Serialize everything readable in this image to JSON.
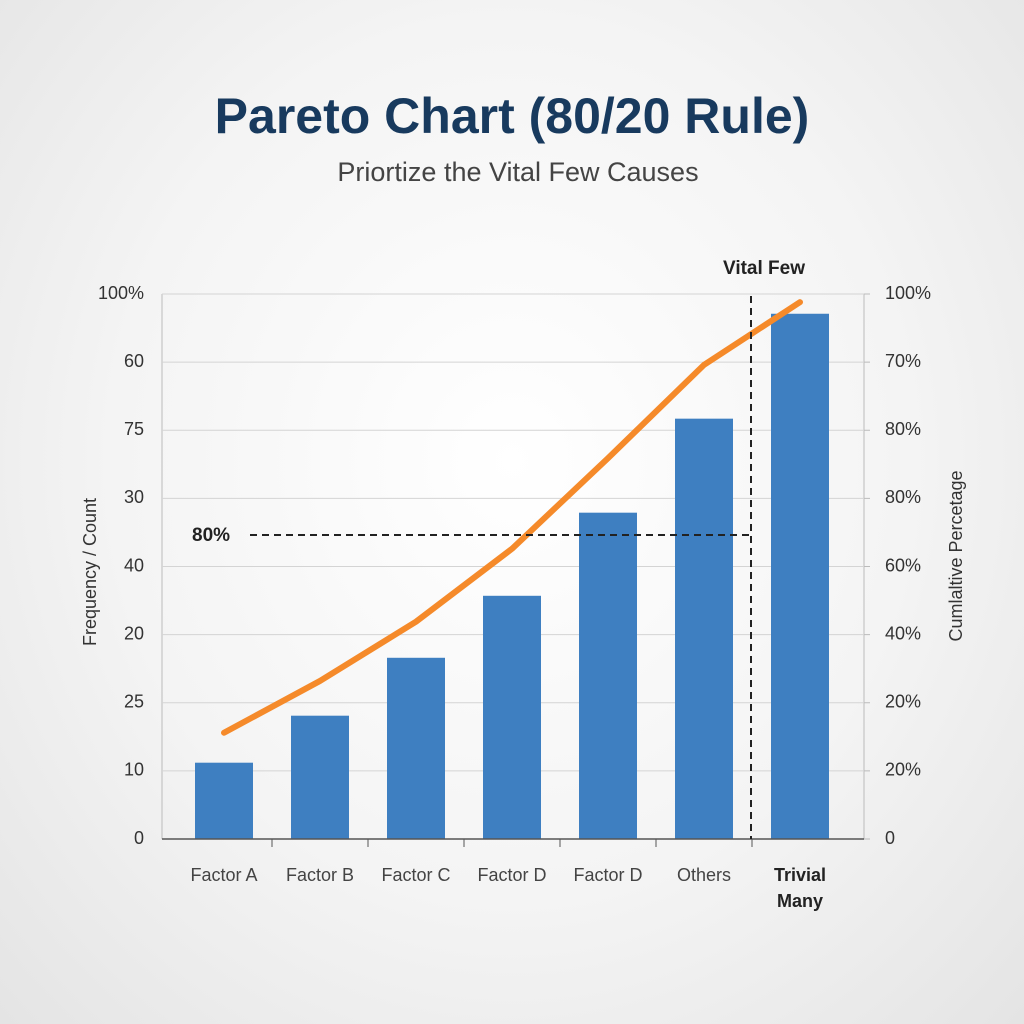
{
  "chart_data": {
    "type": "bar",
    "title": "Pareto Chart (80/20 Rule)",
    "subtitle": "Priortize the Vital Few Causes",
    "y_label": "Frequency / Count",
    "y2_label": "Cumlaltive Percetage",
    "annotations": [
      "Vital Few",
      "80%"
    ],
    "categories": [
      "Factor A",
      "Factor B",
      "Factor C",
      "Factor D",
      "Factor D",
      "Others",
      "Trivial Many"
    ],
    "series": [
      {
        "type": "bar",
        "color": "#3e7fc1",
        "values": [
          11.2,
          18.1,
          26.6,
          35.7,
          47.9,
          61.7,
          77.1
        ]
      },
      {
        "type": "line",
        "axis": "y2",
        "color": "#f58a2a",
        "values": [
          15.6,
          23.2,
          31.9,
          42.6,
          55.9,
          69.6,
          78.8
        ]
      }
    ],
    "ylim": [
      0,
      80
    ],
    "yticks": [
      0,
      10,
      {
        "value": 20,
        "label": "25"
      },
      {
        "value": 30,
        "label": "20"
      },
      {
        "value": 40,
        "label": "40"
      },
      {
        "value": 50,
        "label": "30"
      },
      {
        "value": 60,
        "label": "75"
      },
      {
        "value": 70,
        "label": "60"
      },
      {
        "value": 80,
        "label": "100%"
      }
    ],
    "y2lim": [
      0,
      80
    ],
    "y2ticks": [
      0,
      {
        "value": 10,
        "label": "20%"
      },
      {
        "value": 20,
        "label": "20%"
      },
      {
        "value": 30,
        "label": "40%"
      },
      {
        "value": 40,
        "label": "60%"
      },
      {
        "value": 50,
        "label": "80%"
      },
      {
        "value": 60,
        "label": "80%"
      },
      {
        "value": 70,
        "label": "70%"
      },
      {
        "value": 80,
        "label": "100%"
      }
    ],
    "grid": true
  }
}
